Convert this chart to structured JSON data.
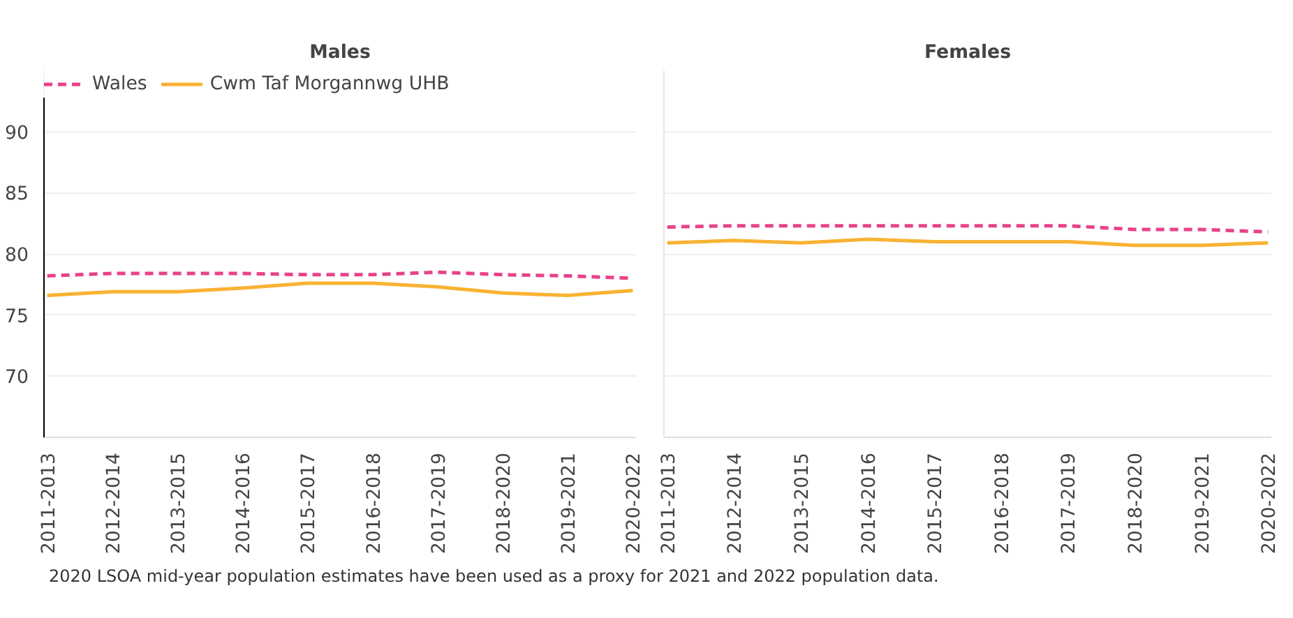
{
  "chart_data": [
    {
      "type": "line",
      "title": "Males",
      "categories": [
        "2011-2013",
        "2012-2014",
        "2013-2015",
        "2014-2016",
        "2015-2017",
        "2016-2018",
        "2017-2019",
        "2018-2020",
        "2019-2021",
        "2020-2022"
      ],
      "series": [
        {
          "name": "Wales",
          "color": "#e8428a",
          "line_style": "dashed",
          "values": [
            78.2,
            78.4,
            78.4,
            78.4,
            78.3,
            78.3,
            78.5,
            78.3,
            78.2,
            78.0
          ]
        },
        {
          "name": "Cwm Taf Morgannwg UHB",
          "color": "#f9b233",
          "line_style": "solid",
          "values": [
            76.6,
            76.9,
            76.9,
            77.2,
            77.6,
            77.6,
            77.3,
            76.8,
            76.6,
            77.0
          ]
        }
      ],
      "ylim": [
        65,
        95
      ],
      "yticks": [
        70,
        75,
        80,
        85,
        90
      ],
      "grid": "y",
      "legend": "top left",
      "marker": "none",
      "annotations": [
        "2020 LSOA mid-year population estimates have been used as a proxy for 2021 and 2022 population data."
      ]
    },
    {
      "type": "line",
      "title": "Females",
      "categories": [
        "2011-2013",
        "2012-2014",
        "2013-2015",
        "2014-2016",
        "2015-2017",
        "2016-2018",
        "2017-2019",
        "2018-2020",
        "2019-2021",
        "2020-2022"
      ],
      "series": [
        {
          "color": "#e8428a",
          "line_style": "dashed",
          "values": [
            82.2,
            82.3,
            82.3,
            82.3,
            82.3,
            82.3,
            82.3,
            82.0,
            82.0,
            81.8
          ]
        },
        {
          "color": "#f9b233",
          "line_style": "solid",
          "values": [
            80.9,
            81.1,
            80.9,
            81.2,
            81.0,
            81.0,
            81.0,
            80.7,
            80.7,
            80.9
          ]
        }
      ],
      "ylim": [
        65,
        95
      ],
      "yticks": [
        70,
        75,
        80,
        85,
        90
      ],
      "grid": "y",
      "tick_labels": "x",
      "marker": "none"
    }
  ]
}
